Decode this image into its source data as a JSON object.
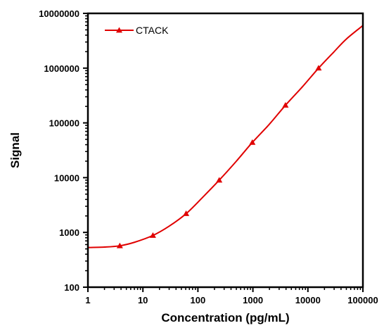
{
  "chart_data": {
    "type": "line",
    "x_scale": "log",
    "y_scale": "log",
    "xlabel": "Concentration (pg/mL)",
    "ylabel": "Signal",
    "xlim": [
      1,
      100000
    ],
    "ylim": [
      100,
      10000000
    ],
    "x_ticks": [
      "1",
      "10",
      "100",
      "1000",
      "10000",
      "100000"
    ],
    "y_ticks": [
      "100",
      "1000",
      "10000",
      "100000",
      "1000000",
      "10000000"
    ],
    "grid": false,
    "legend_position": "top-left",
    "series": [
      {
        "name": "CTACK",
        "color": "#e00000",
        "marker": "triangle",
        "x": [
          3.8,
          15.2,
          61,
          244,
          977,
          3906,
          15625
        ],
        "y": [
          570,
          880,
          2200,
          9000,
          44000,
          210000,
          1000000
        ],
        "fit_curve": {
          "x": [
            1,
            2,
            3.8,
            7,
            15.2,
            30,
            61,
            120,
            244,
            500,
            977,
            2000,
            3906,
            8000,
            15625,
            30000,
            50000,
            100000
          ],
          "y": [
            530,
            540,
            570,
            660,
            880,
            1300,
            2200,
            4300,
            9000,
            20000,
            44000,
            95000,
            210000,
            460000,
            1000000,
            2000000,
            3400000,
            6000000
          ]
        }
      }
    ]
  }
}
